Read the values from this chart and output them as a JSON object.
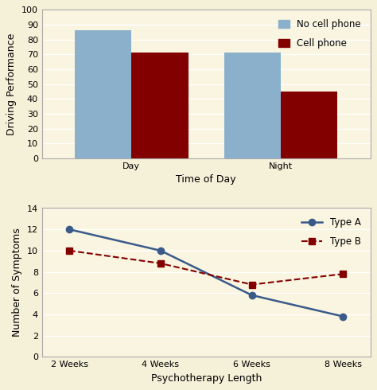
{
  "bg_color": "#f5f0d8",
  "plot_bg_color": "#faf5e0",
  "bar_chart": {
    "categories": [
      "Day",
      "Night"
    ],
    "no_cell": [
      86,
      71
    ],
    "cell": [
      71,
      45
    ],
    "no_cell_color": "#8ab0cc",
    "cell_color": "#820000",
    "ylabel": "Driving Performance",
    "xlabel": "Time of Day",
    "ylim": [
      0,
      100
    ],
    "yticks": [
      0,
      10,
      20,
      30,
      40,
      50,
      60,
      70,
      80,
      90,
      100
    ],
    "legend_labels": [
      "No cell phone",
      "Cell phone"
    ],
    "bar_width": 0.38
  },
  "line_chart": {
    "x_labels": [
      "2 Weeks",
      "4 Weeks",
      "6 Weeks",
      "8 Weeks"
    ],
    "type_a": [
      12,
      10,
      5.8,
      3.8
    ],
    "type_b": [
      10,
      8.8,
      6.8,
      7.8
    ],
    "type_a_color": "#3a5a8a",
    "type_b_color": "#820000",
    "ylabel": "Number of Symptoms",
    "xlabel": "Psychotherapy Length",
    "ylim": [
      0,
      14
    ],
    "yticks": [
      0,
      2,
      4,
      6,
      8,
      10,
      12,
      14
    ],
    "legend_labels": [
      "Type A",
      "Type B"
    ]
  },
  "spine_color": "#aaaaaa",
  "grid_color": "#ffffff",
  "font_size_label": 9,
  "font_size_tick": 8,
  "font_size_legend": 8.5
}
